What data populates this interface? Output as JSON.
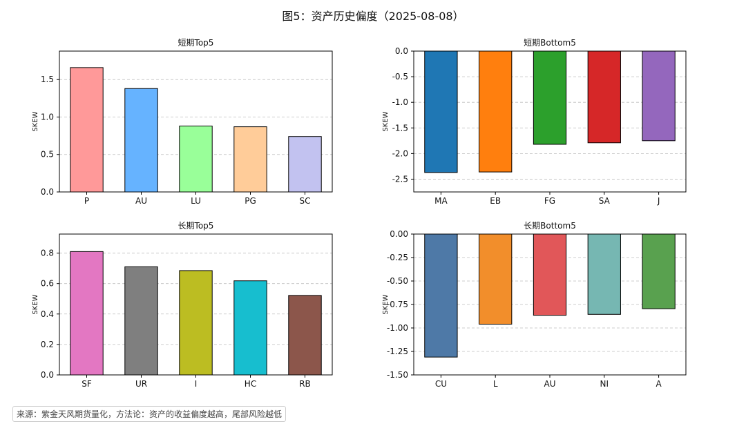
{
  "figure_title": "图5：资产历史偏度（2025-08-08）",
  "source_note": "来源：紫金天风期货量化，方法论：资产的收益偏度越高，尾部风险越低",
  "chart_data": [
    {
      "type": "bar",
      "title": "短期Top5",
      "ylabel": "SKEW",
      "categories": [
        "P",
        "AU",
        "LU",
        "PG",
        "SC"
      ],
      "values": [
        1.66,
        1.38,
        0.88,
        0.87,
        0.74
      ],
      "colors": [
        "#ff9999",
        "#66b3ff",
        "#99ff99",
        "#ffcc99",
        "#c2c2f0"
      ],
      "ylim": [
        0,
        1.88
      ],
      "yticks": [
        "0.0",
        "0.5",
        "1.0",
        "1.5"
      ],
      "grid": "y-dashed"
    },
    {
      "type": "bar",
      "title": "短期Bottom5",
      "ylabel": "SKEW",
      "categories": [
        "MA",
        "EB",
        "FG",
        "SA",
        "J"
      ],
      "values": [
        -2.37,
        -2.36,
        -1.82,
        -1.79,
        -1.75
      ],
      "colors": [
        "#1f77b4",
        "#ff7f0e",
        "#2ca02c",
        "#d62728",
        "#9467bd"
      ],
      "ylim": [
        -2.75,
        0.0
      ],
      "yticks": [
        "0.0",
        "-0.5",
        "-1.0",
        "-1.5",
        "-2.0",
        "-2.5"
      ],
      "grid": "y-dashed"
    },
    {
      "type": "bar",
      "title": "长期Top5",
      "ylabel": "SKEW",
      "categories": [
        "SF",
        "UR",
        "I",
        "HC",
        "RB"
      ],
      "values": [
        0.81,
        0.71,
        0.685,
        0.618,
        0.522
      ],
      "colors": [
        "#e377c2",
        "#7f7f7f",
        "#bcbd22",
        "#17becf",
        "#8c564b"
      ],
      "ylim": [
        0,
        0.925
      ],
      "yticks": [
        "0.0",
        "0.2",
        "0.4",
        "0.6",
        "0.8"
      ],
      "grid": "y-dashed"
    },
    {
      "type": "bar",
      "title": "长期Bottom5",
      "ylabel": "SKEW",
      "categories": [
        "CU",
        "L",
        "AU",
        "NI",
        "A"
      ],
      "values": [
        -1.31,
        -0.96,
        -0.865,
        -0.855,
        -0.795
      ],
      "colors": [
        "#4e79a7",
        "#f28e2b",
        "#e15759",
        "#76b7b2",
        "#59a14f"
      ],
      "ylim": [
        -1.5,
        0.0
      ],
      "yticks": [
        "0.00",
        "-0.25",
        "-0.50",
        "-0.75",
        "-1.00",
        "-1.25",
        "-1.50"
      ],
      "grid": "y-dashed"
    }
  ]
}
